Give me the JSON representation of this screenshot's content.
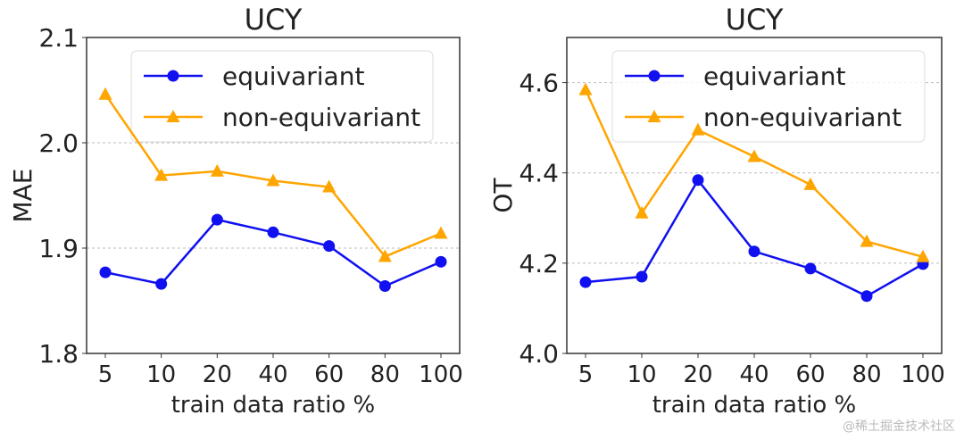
{
  "chart_data": [
    {
      "type": "line",
      "title": "UCY",
      "xlabel": "train data ratio %",
      "ylabel": "MAE",
      "categories": [
        "5",
        "10",
        "20",
        "40",
        "60",
        "80",
        "100"
      ],
      "yticks": [
        "1.8",
        "1.9",
        "2.0",
        "2.1"
      ],
      "ylim": [
        1.8,
        2.1
      ],
      "grid": "horizontal dotted",
      "legend": "top-right",
      "series": [
        {
          "name": "equivariant",
          "color": "#1010f0",
          "marker": "circle",
          "values": [
            1.877,
            1.866,
            1.927,
            1.915,
            1.902,
            1.864,
            1.887
          ]
        },
        {
          "name": "non-equivariant",
          "color": "#ffa500",
          "marker": "triangle",
          "values": [
            2.046,
            1.969,
            1.973,
            1.964,
            1.958,
            1.892,
            1.914
          ]
        }
      ]
    },
    {
      "type": "line",
      "title": "UCY",
      "xlabel": "train data ratio %",
      "ylabel": "OT",
      "categories": [
        "5",
        "10",
        "20",
        "40",
        "60",
        "80",
        "100"
      ],
      "yticks": [
        "4.0",
        "4.2",
        "4.4",
        "4.6"
      ],
      "ylim": [
        4.0,
        4.7
      ],
      "grid": "horizontal dotted",
      "legend": "top-right",
      "series": [
        {
          "name": "equivariant",
          "color": "#1010f0",
          "marker": "circle",
          "values": [
            4.158,
            4.17,
            4.384,
            4.226,
            4.188,
            4.127,
            4.198
          ]
        },
        {
          "name": "non-equivariant",
          "color": "#ffa500",
          "marker": "triangle",
          "values": [
            4.584,
            4.311,
            4.495,
            4.436,
            4.374,
            4.248,
            4.214
          ]
        }
      ]
    }
  ],
  "watermark": "@稀土掘金技术社区"
}
